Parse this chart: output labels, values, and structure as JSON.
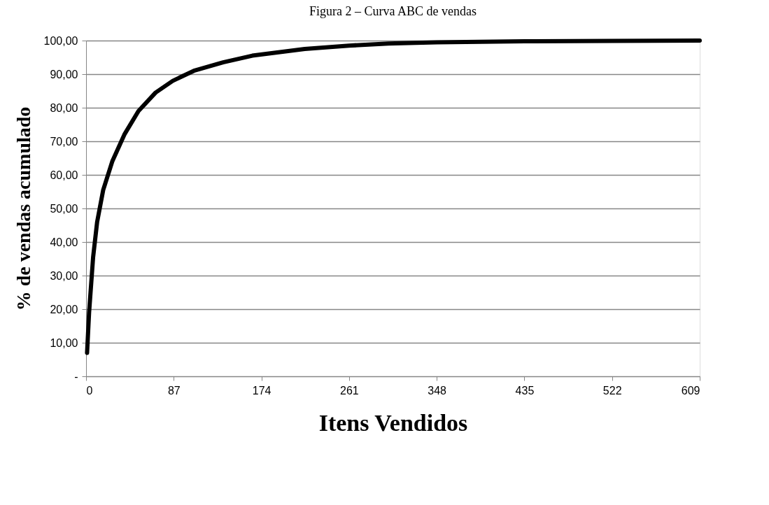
{
  "chart_data": {
    "type": "line",
    "title": "Figura 2 – Curva ABC de vendas",
    "xlabel": "Itens Vendidos",
    "ylabel": "% de vendas acumulado",
    "x": [
      1,
      3,
      7,
      11,
      17,
      26,
      38,
      52,
      69,
      86,
      107,
      136,
      165,
      217,
      261,
      300,
      348,
      435,
      522,
      609
    ],
    "series": [
      {
        "color": "#000000",
        "values": [
          7,
          19,
          35.5,
          46,
          55.5,
          64,
          72,
          79,
          84.5,
          88,
          91,
          93.5,
          95.5,
          97.5,
          98.5,
          99.1,
          99.5,
          99.8,
          99.9,
          100
        ]
      }
    ],
    "xlim": [
      0,
      609
    ],
    "xticks": [
      0,
      87,
      174,
      261,
      348,
      435,
      522,
      609
    ],
    "ylim": [
      0,
      100
    ],
    "yticks": [
      {
        "value": 0,
        "label": "-"
      },
      {
        "value": 10,
        "label": "10,00"
      },
      {
        "value": 20,
        "label": "20,00"
      },
      {
        "value": 30,
        "label": "30,00"
      },
      {
        "value": 40,
        "label": "40,00"
      },
      {
        "value": 50,
        "label": "50,00"
      },
      {
        "value": 60,
        "label": "60,00"
      },
      {
        "value": 70,
        "label": "70,00"
      },
      {
        "value": 80,
        "label": "80,00"
      },
      {
        "value": 90,
        "label": "90,00"
      },
      {
        "value": 100,
        "label": "100,00"
      }
    ],
    "grid": "y",
    "marker": "none",
    "line_style": "solid",
    "legend": false
  }
}
